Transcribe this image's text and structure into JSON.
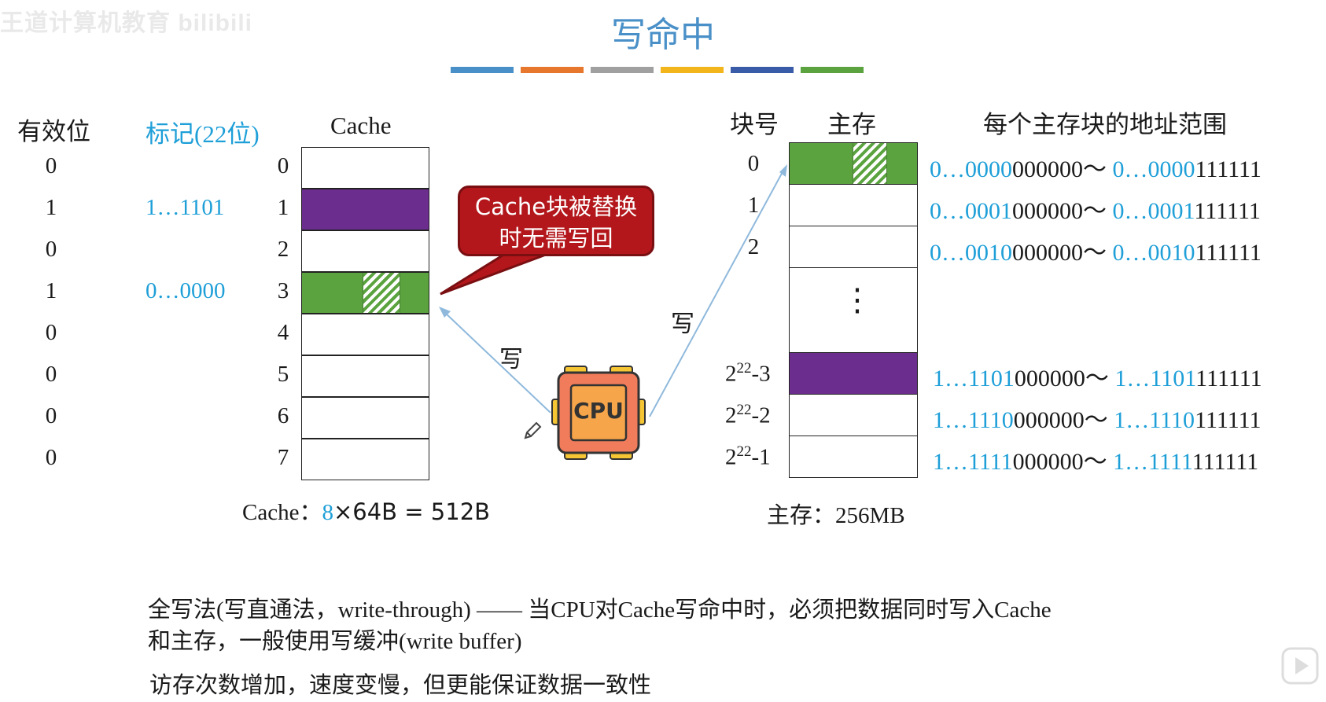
{
  "watermark": "王道计算机教育 bilibili",
  "title": "写命中",
  "title_bar_colors": [
    "#4a90c8",
    "#e8772e",
    "#a0a0a0",
    "#f2b51c",
    "#3a5ca8",
    "#5aa33f"
  ],
  "cache_headers": {
    "valid": "有效位",
    "tag": "标记(22位)",
    "cache": "Cache"
  },
  "valid_bits": [
    "0",
    "1",
    "0",
    "1",
    "0",
    "0",
    "0",
    "0"
  ],
  "tags": {
    "row1": "1…1101",
    "row3": "0…0000"
  },
  "cache_rows": [
    "0",
    "1",
    "2",
    "3",
    "4",
    "5",
    "6",
    "7"
  ],
  "cache_size": {
    "prefix": "Cache：",
    "lines": "8",
    "rest": "×64B = 512B"
  },
  "bubble": {
    "line1": "Cache块被替换",
    "line2": "时无需写回"
  },
  "write_label": "写",
  "cpu_label": "CPU",
  "memory_headers": {
    "block_no": "块号",
    "memory": "主存",
    "range": "每个主存块的地址范围"
  },
  "memory_rows": [
    {
      "block": "0",
      "start_blue": "0…0000",
      "start_black": "000000",
      "end_blue": "0…0000",
      "end_black": "111111"
    },
    {
      "block": "1",
      "start_blue": "0…0001",
      "start_black": "000000",
      "end_blue": "0…0001",
      "end_black": "111111"
    },
    {
      "block": "2",
      "start_blue": "0…0010",
      "start_black": "000000",
      "end_blue": "0…0010",
      "end_black": "111111"
    },
    {
      "block_base": "2",
      "block_exp": "22",
      "block_suffix": "-3",
      "start_blue": "1…1101",
      "start_black": "000000",
      "end_blue": "1…1101",
      "end_black": "111111"
    },
    {
      "block_base": "2",
      "block_exp": "22",
      "block_suffix": "-2",
      "start_blue": "1…1110",
      "start_black": "000000",
      "end_blue": "1…1110",
      "end_black": "111111"
    },
    {
      "block_base": "2",
      "block_exp": "22",
      "block_suffix": "-1",
      "start_blue": "1…1111",
      "start_black": "000000",
      "end_blue": "1…1111",
      "end_black": "111111"
    }
  ],
  "tilde": "～",
  "ellipsis": "⋮",
  "memory_size": "主存：256MB",
  "text": {
    "line1": "全写法(写直通法，write-through) —— 当CPU对Cache写命中时，必须把数据同时写入Cache",
    "line2": "和主存，一般使用写缓冲(write buffer)",
    "line3": "访存次数增加，速度变慢，但更能保证数据一致性"
  },
  "colors": {
    "blue_text": "#1e9fd8",
    "green_block": "#5aa33f",
    "purple_block": "#6b2d8e",
    "bubble": "#b3171b",
    "cpu": "#f08a5d"
  }
}
